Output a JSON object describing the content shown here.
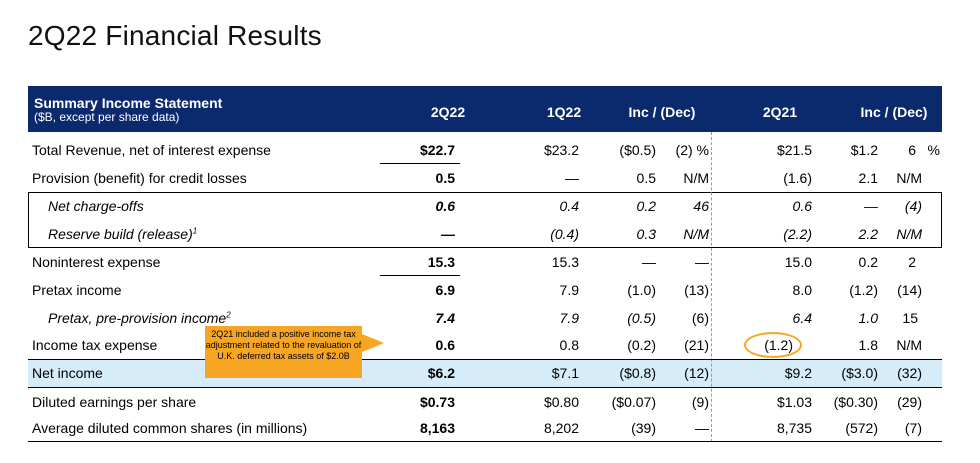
{
  "title": "2Q22 Financial Results",
  "header": {
    "title": "Summary Income Statement",
    "subtitle": "($B, except per share data)",
    "columns": [
      "2Q22",
      "1Q22",
      "Inc / (Dec)",
      "2Q21",
      "Inc / (Dec)"
    ]
  },
  "rows": [
    {
      "label": "Total Revenue, net of interest expense",
      "c1": "$22.7",
      "c2": "$23.2",
      "c3": "($0.5)",
      "c4": "(2) %",
      "c5": "$21.5",
      "c6": "$1.2",
      "c7": "6",
      "c8": "%"
    },
    {
      "label": "Provision (benefit) for credit losses",
      "c1": "0.5",
      "c2": "—",
      "c3": "0.5",
      "c4": "N/M",
      "c5": "(1.6)",
      "c6": "2.1",
      "c7": "N/M",
      "c8": ""
    },
    {
      "label": "Net charge-offs",
      "c1": "0.6",
      "c2": "0.4",
      "c3": "0.2",
      "c4": "46",
      "c5": "0.6",
      "c6": "—",
      "c7": "(4)",
      "c8": ""
    },
    {
      "label": "Reserve build (release)",
      "sup": "1",
      "c1": "—",
      "c2": "(0.4)",
      "c3": "0.3",
      "c4": "N/M",
      "c5": "(2.2)",
      "c6": "2.2",
      "c7": "N/M",
      "c8": ""
    },
    {
      "label": "Noninterest expense",
      "c1": "15.3",
      "c2": "15.3",
      "c3": "—",
      "c4": "—",
      "c5": "15.0",
      "c6": "0.2",
      "c7": "2",
      "c8": ""
    },
    {
      "label": "Pretax income",
      "c1": "6.9",
      "c2": "7.9",
      "c3": "(1.0)",
      "c4": "(13)",
      "c5": "8.0",
      "c6": "(1.2)",
      "c7": "(14)",
      "c8": ""
    },
    {
      "label": "Pretax, pre-provision income",
      "sup": "2",
      "c1": "7.4",
      "c2": "7.9",
      "c3": "(0.5)",
      "c4": "(6)",
      "c5": "6.4",
      "c6": "1.0",
      "c7": "15",
      "c8": ""
    },
    {
      "label": "Income tax expense",
      "c1": "0.6",
      "c2": "0.8",
      "c3": "(0.2)",
      "c4": "(21)",
      "c5": "(1.2)",
      "c6": "1.8",
      "c7": "N/M",
      "c8": ""
    },
    {
      "label": "Net income",
      "c1": "$6.2",
      "c2": "$7.1",
      "c3": "($0.8)",
      "c4": "(12)",
      "c5": "$9.2",
      "c6": "($3.0)",
      "c7": "(32)",
      "c8": ""
    },
    {
      "label": "Diluted earnings per share",
      "c1": "$0.73",
      "c2": "$0.80",
      "c3": "($0.07)",
      "c4": "(9)",
      "c5": "$1.03",
      "c6": "($0.30)",
      "c7": "(29)",
      "c8": ""
    },
    {
      "label": "Average diluted common shares (in millions)",
      "c1": "8,163",
      "c2": "8,202",
      "c3": "(39)",
      "c4": "—",
      "c5": "8,735",
      "c6": "(572)",
      "c7": "(7)",
      "c8": ""
    }
  ],
  "callout": {
    "text": "2Q21 included a positive income tax adjustment related to the revaluation of U.K. deferred tax assets of $2.0B",
    "color": "#f6a623"
  },
  "colors": {
    "header": "#0b2a6e",
    "highlight": "#d6ecf8",
    "callout": "#f6a623"
  }
}
